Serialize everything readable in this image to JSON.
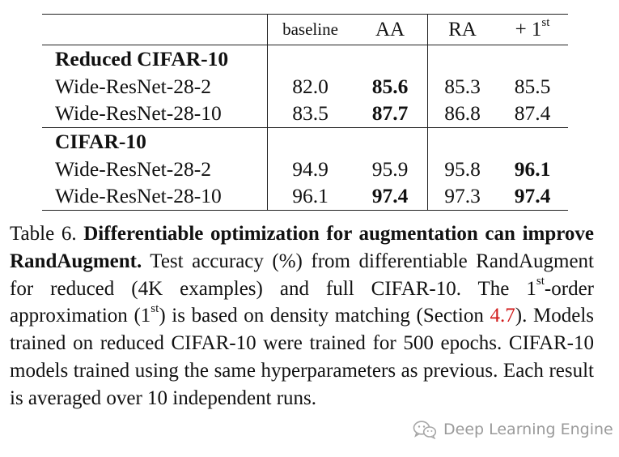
{
  "table": {
    "headers": {
      "baseline": "baseline",
      "aa": "AA",
      "ra": "RA",
      "first_prefix": "+ 1",
      "first_sup": "st"
    },
    "groups": [
      {
        "title": "Reduced CIFAR-10",
        "rows": [
          {
            "model": "Wide-ResNet-28-2",
            "baseline": "82.0",
            "aa": "85.6",
            "ra": "85.3",
            "first": "85.5"
          },
          {
            "model": "Wide-ResNet-28-10",
            "baseline": "83.5",
            "aa": "87.7",
            "ra": "86.8",
            "first": "87.4"
          }
        ]
      },
      {
        "title": "CIFAR-10",
        "rows": [
          {
            "model": "Wide-ResNet-28-2",
            "baseline": "94.9",
            "aa": "95.9",
            "ra": "95.8",
            "first": "96.1"
          },
          {
            "model": "Wide-ResNet-28-10",
            "baseline": "96.1",
            "aa": "97.4",
            "ra": "97.3",
            "first": "97.4"
          }
        ]
      }
    ]
  },
  "caption": {
    "label": "Table 6.",
    "bold_title": "Differentiable optimization for augmentation can improve RandAugment.",
    "text_1": "Test accuracy (%) from differentiable RandAugment for reduced (4K examples) and full CIFAR-10. The 1",
    "sup_1": "st",
    "text_2": "-order approximation (1",
    "sup_2": "st",
    "text_3": ") is based on density matching (Section",
    "ref": "4.7",
    "text_4": "). Models trained on reduced CIFAR-10 were trained for 500 epochs. CIFAR-10 models trained using the same hyperparameters as previous. Each result is averaged over 10 independent runs."
  },
  "watermark": {
    "text": "Deep Learning Engine",
    "icon": "wechat-icon"
  }
}
